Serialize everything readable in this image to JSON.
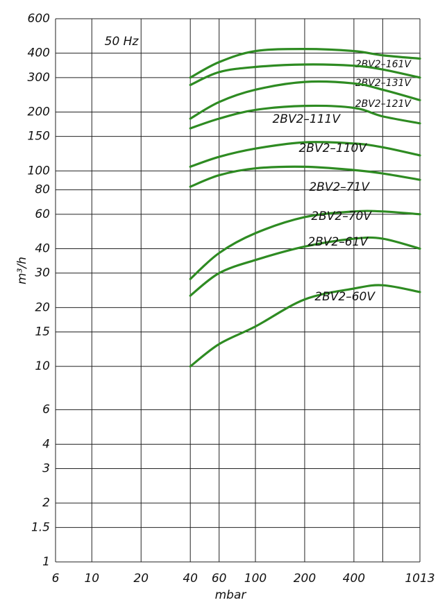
{
  "chart_data": {
    "type": "line",
    "annotation": "50 Hz",
    "x_label": "mbar",
    "y_label": "m³/h",
    "xlog": true,
    "ylog": true,
    "grid": true,
    "xlim": [
      6,
      1013
    ],
    "ylim": [
      1,
      600
    ],
    "xticks": [
      6,
      10,
      20,
      40,
      60,
      100,
      200,
      400,
      1013
    ],
    "xgrid": [
      6,
      10,
      20,
      40,
      60,
      100,
      200,
      400,
      600,
      1013
    ],
    "yticks": [
      1,
      1.5,
      2,
      3,
      4,
      6,
      10,
      15,
      20,
      30,
      40,
      60,
      80,
      100,
      150,
      200,
      300,
      400,
      600
    ],
    "x": [
      40,
      60,
      100,
      200,
      400,
      600,
      1013
    ],
    "series": [
      {
        "name": "2BV2–161V",
        "color": "#2e8b22",
        "values": [
          300,
          360,
          410,
          420,
          410,
          390,
          375
        ]
      },
      {
        "name": "2BV2–131V",
        "color": "#2e8b22",
        "values": [
          275,
          320,
          340,
          350,
          345,
          330,
          300
        ]
      },
      {
        "name": "2BV2–121V",
        "color": "#2e8b22",
        "values": [
          185,
          225,
          260,
          285,
          280,
          260,
          230
        ]
      },
      {
        "name": "2BV2–111V",
        "color": "#2e8b22",
        "values": [
          165,
          185,
          205,
          215,
          210,
          190,
          175
        ]
      },
      {
        "name": "2BV2–110V",
        "color": "#2e8b22",
        "values": [
          105,
          118,
          130,
          140,
          138,
          132,
          120
        ]
      },
      {
        "name": "2BV2–71V",
        "color": "#2e8b22",
        "values": [
          83,
          95,
          103,
          105,
          101,
          97,
          90
        ]
      },
      {
        "name": "2BV2–70V",
        "color": "#2e8b22",
        "values": [
          28,
          38,
          48,
          58,
          62,
          62,
          60
        ]
      },
      {
        "name": "2BV2–61V",
        "color": "#2e8b22",
        "values": [
          23,
          30,
          35,
          41,
          45,
          45,
          40
        ]
      },
      {
        "name": "2BV2–60V",
        "color": "#2e8b22",
        "values": [
          10,
          13,
          16,
          22,
          25,
          26,
          24
        ]
      }
    ]
  }
}
